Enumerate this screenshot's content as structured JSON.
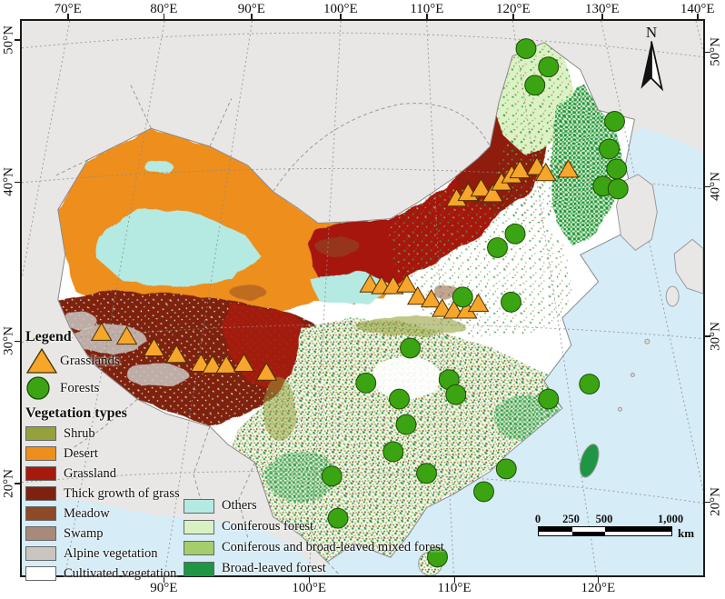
{
  "axes": {
    "top": [
      {
        "label": "70°E",
        "p": 7.0
      },
      {
        "label": "80°E",
        "p": 21.0
      },
      {
        "label": "90°E",
        "p": 33.8
      },
      {
        "label": "100°E",
        "p": 46.8
      },
      {
        "label": "110°E",
        "p": 59.4
      },
      {
        "label": "120°E",
        "p": 72.0
      },
      {
        "label": "130°E",
        "p": 85.0
      },
      {
        "label": "140°E",
        "p": 98.9
      }
    ],
    "bottom": [
      {
        "label": "90°E",
        "p": 21.0
      },
      {
        "label": "100°E",
        "p": 42.2
      },
      {
        "label": "110°E",
        "p": 63.4
      },
      {
        "label": "120°E",
        "p": 84.4
      }
    ],
    "left": [
      {
        "label": "50°N",
        "p": 3.7
      },
      {
        "label": "40°N",
        "p": 29.2
      },
      {
        "label": "30°N",
        "p": 57.7
      },
      {
        "label": "20°N",
        "p": 83.2
      }
    ],
    "right": [
      {
        "label": "50°N",
        "p": 5.9
      },
      {
        "label": "40°N",
        "p": 30.0
      },
      {
        "label": "30°N",
        "p": 56.8
      },
      {
        "label": "20°N",
        "p": 86.5
      }
    ]
  },
  "north_arrow": {
    "label": "N"
  },
  "scale_bar": {
    "tick_labels": [
      "0",
      "250",
      "500",
      "1,000"
    ],
    "unit": "km"
  },
  "legend": {
    "title": "Legend",
    "site_markers": [
      {
        "label": "Grasslands",
        "shape": "triangle",
        "fill": "#F5A62B",
        "stroke": "#4a3000"
      },
      {
        "label": "Forests",
        "shape": "circle",
        "fill": "#3BA412",
        "stroke": "#1c4d06"
      }
    ],
    "veg_title": "Vegetation types",
    "veg_col1": [
      {
        "label": "Shrub",
        "color": "#95A23C"
      },
      {
        "label": "Desert",
        "color": "#EE8E1C"
      },
      {
        "label": "Grassland",
        "color": "#A6190D"
      },
      {
        "label": "Thick growth of grass",
        "color": "#7E220F"
      },
      {
        "label": "Meadow",
        "color": "#8C4A26"
      },
      {
        "label": "Swamp",
        "color": "#A78A7A"
      },
      {
        "label": "Alpine vegetation",
        "color": "#C9C6C1"
      },
      {
        "label": "Cultivated vegetation",
        "color": "#FFFFFF"
      }
    ],
    "veg_col2": [
      {
        "label": "Others",
        "color": "#B5EAE2"
      },
      {
        "label": "Coniferous forest",
        "color": "#D9F2C3"
      },
      {
        "label": "Coniferous and broad-leaved mixed forest",
        "color": "#A3CE6B"
      },
      {
        "label": "Broad-leaved forest",
        "color": "#1E9643"
      }
    ]
  },
  "map_data": {
    "type": "site-map",
    "region": "China vegetation types with grassland and forest sampling sites",
    "grassland_sites_pct": [
      [
        11.7,
        56.3
      ],
      [
        15.4,
        57.0
      ],
      [
        19.4,
        59.1
      ],
      [
        22.7,
        60.3
      ],
      [
        26.3,
        61.9
      ],
      [
        28.0,
        62.2
      ],
      [
        30.0,
        62.2
      ],
      [
        32.6,
        61.9
      ],
      [
        35.9,
        63.5
      ],
      [
        51.1,
        47.6
      ],
      [
        52.8,
        47.9
      ],
      [
        54.5,
        47.9
      ],
      [
        56.5,
        47.6
      ],
      [
        58.1,
        49.8
      ],
      [
        60.1,
        50.3
      ],
      [
        61.7,
        52.0
      ],
      [
        63.4,
        52.3
      ],
      [
        65.3,
        52.3
      ],
      [
        67.0,
        51.1
      ],
      [
        63.8,
        32.1
      ],
      [
        65.5,
        31.1
      ],
      [
        67.4,
        30.3
      ],
      [
        69.1,
        31.3
      ],
      [
        70.4,
        29.2
      ],
      [
        71.9,
        27.9
      ],
      [
        73.1,
        27.0
      ],
      [
        75.6,
        26.4
      ],
      [
        76.9,
        27.5
      ],
      [
        80.2,
        26.9
      ]
    ],
    "forest_sites_pct": [
      [
        74.0,
        5.0
      ],
      [
        77.3,
        8.3
      ],
      [
        75.3,
        11.6
      ],
      [
        87.0,
        18.1
      ],
      [
        86.2,
        23.1
      ],
      [
        87.3,
        26.7
      ],
      [
        85.3,
        29.8
      ],
      [
        87.5,
        30.3
      ],
      [
        72.4,
        38.4
      ],
      [
        69.8,
        40.9
      ],
      [
        64.7,
        49.8
      ],
      [
        71.8,
        50.7
      ],
      [
        57.0,
        59.0
      ],
      [
        50.5,
        65.3
      ],
      [
        62.7,
        64.7
      ],
      [
        63.7,
        67.4
      ],
      [
        55.4,
        68.2
      ],
      [
        77.3,
        68.2
      ],
      [
        83.3,
        65.5
      ],
      [
        56.4,
        72.8
      ],
      [
        54.5,
        77.7
      ],
      [
        59.4,
        81.6
      ],
      [
        71.1,
        80.8
      ],
      [
        45.5,
        82.1
      ],
      [
        67.8,
        84.9
      ],
      [
        46.4,
        89.7
      ],
      [
        61.0,
        96.7
      ]
    ],
    "colors": {
      "sea": "#D6ECF7",
      "outside_land": "#E8E7E5",
      "country_border": "#9a9a9a",
      "graticule": "#8c8c8c"
    }
  }
}
